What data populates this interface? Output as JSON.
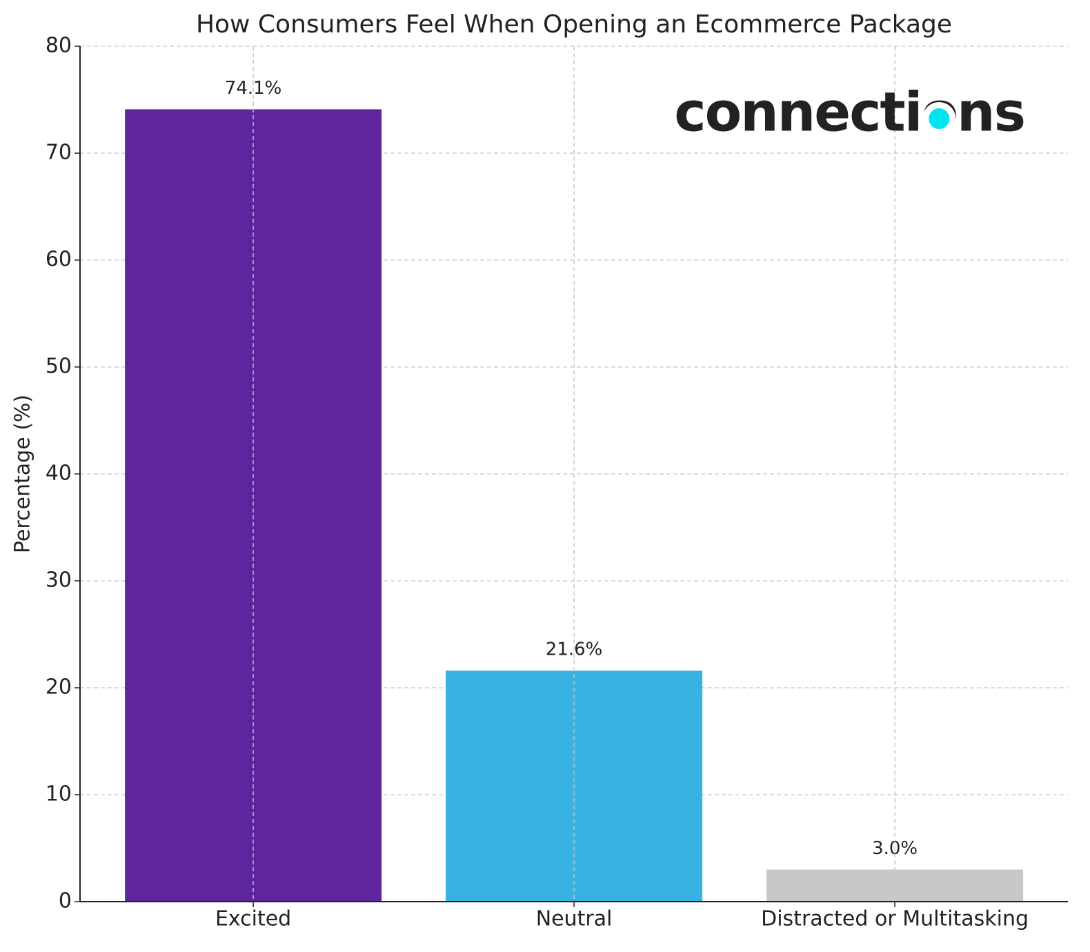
{
  "chart_data": {
    "type": "bar",
    "title": "How Consumers Feel When Opening an Ecommerce Package",
    "ylabel": "Percentage (%)",
    "logo": "connections",
    "categories": [
      "Excited",
      "Neutral",
      "Distracted or Multitasking"
    ],
    "values": [
      74.1,
      21.6,
      3.0
    ],
    "value_labels": [
      "74.1%",
      "21.6%",
      "3.0%"
    ],
    "colors": [
      "#5f259f",
      "#38b2e3",
      "#c8c8c8"
    ],
    "ylim": [
      0,
      80
    ],
    "yticks": [
      0,
      10,
      20,
      30,
      40,
      50,
      60,
      70,
      80
    ],
    "grid": true
  }
}
